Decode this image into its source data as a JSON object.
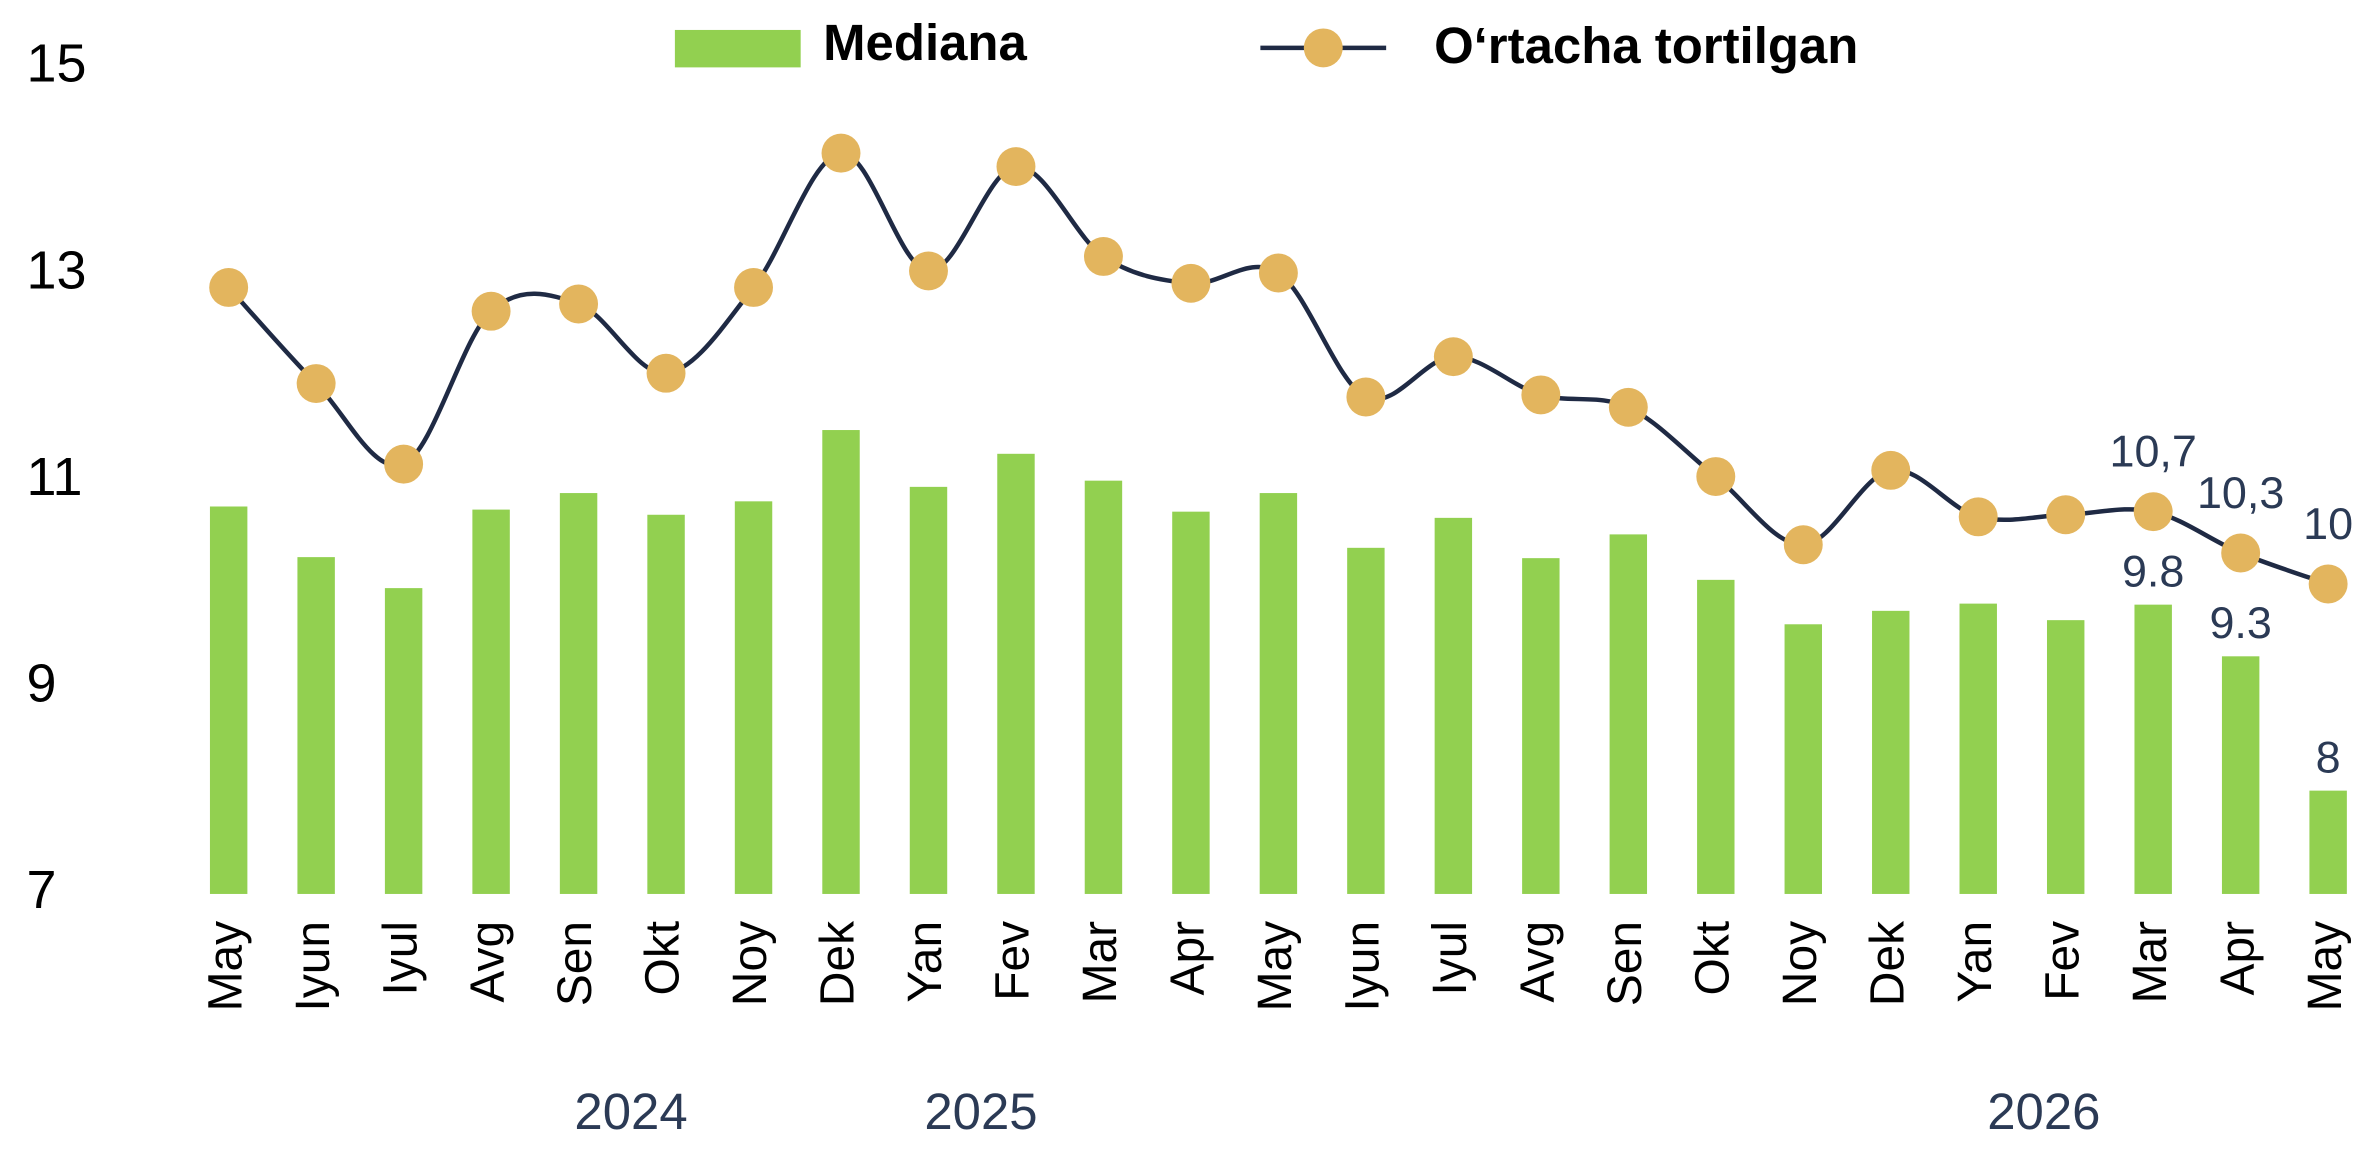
{
  "chart_data": {
    "type": "bar-line",
    "categories": [
      "May",
      "Iyun",
      "Iyul",
      "Avg",
      "Sen",
      "Okt",
      "Noy",
      "Dek",
      "Yan",
      "Fev",
      "Mar",
      "Apr",
      "May",
      "Iyun",
      "Iyul",
      "Avg",
      "Sen",
      "Okt",
      "Noy",
      "Dek",
      "Yan",
      "Fev",
      "Mar",
      "Apr",
      "May"
    ],
    "year_labels": [
      "2024",
      "2025",
      "2026"
    ],
    "series": [
      {
        "name": "Mediana",
        "type": "bar",
        "color": "#92d050",
        "values": [
          10.75,
          10.26,
          9.96,
          10.72,
          10.88,
          10.67,
          10.8,
          11.49,
          10.94,
          11.26,
          11.0,
          10.7,
          10.88,
          10.35,
          10.64,
          10.25,
          10.48,
          10.04,
          9.61,
          9.74,
          9.81,
          9.65,
          9.8,
          9.3,
          8
        ],
        "value_labels": [
          null,
          null,
          null,
          null,
          null,
          null,
          null,
          null,
          null,
          null,
          null,
          null,
          null,
          null,
          null,
          null,
          null,
          null,
          null,
          null,
          null,
          null,
          "9.8",
          "9.3",
          "8"
        ]
      },
      {
        "name": "O‘rtacha tortilgan",
        "type": "line",
        "color": "#1f2a44",
        "marker_color": "#e3b55e",
        "values": [
          12.87,
          11.94,
          11.16,
          12.64,
          12.71,
          12.04,
          12.87,
          14.17,
          13.03,
          14.04,
          13.17,
          12.91,
          13.01,
          11.81,
          12.2,
          11.83,
          11.71,
          11.04,
          10.38,
          11.1,
          10.65,
          10.67,
          10.7,
          10.3,
          10
        ],
        "value_labels": [
          null,
          null,
          null,
          null,
          null,
          null,
          null,
          null,
          null,
          null,
          null,
          null,
          null,
          null,
          null,
          null,
          null,
          null,
          null,
          null,
          null,
          null,
          "10,7",
          "10,3",
          "10"
        ]
      }
    ],
    "ylim": [
      7,
      15
    ],
    "yticks": [
      7,
      9,
      11,
      13,
      15
    ],
    "grid": false,
    "legend": "top"
  }
}
